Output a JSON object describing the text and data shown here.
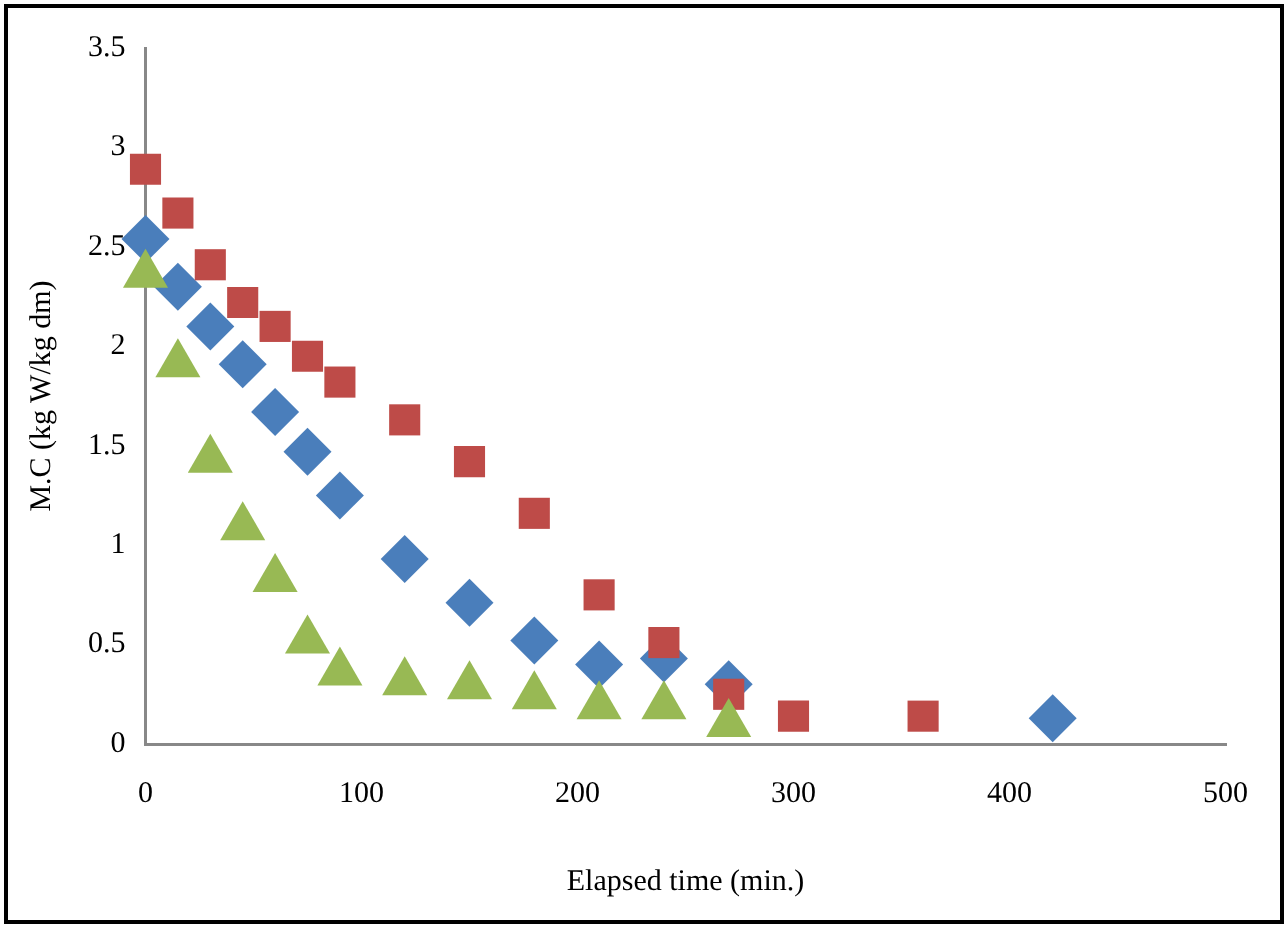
{
  "chart_data": {
    "type": "scatter",
    "xlabel": "Elapsed time (min.)",
    "ylabel": "M.C (kg W/kg dm)",
    "xlim": [
      0,
      500
    ],
    "xticks": [
      0,
      100,
      200,
      300,
      400,
      500
    ],
    "ylim": [
      0,
      3.5
    ],
    "yticks": [
      0,
      0.5,
      1,
      1.5,
      2,
      2.5,
      3,
      3.5
    ],
    "grid": false,
    "legend": false,
    "series": [
      {
        "color": "#4a7ebb",
        "marker": "diamond",
        "x": [
          0,
          15,
          30,
          45,
          60,
          75,
          90,
          120,
          150,
          180,
          210,
          240,
          270,
          420
        ],
        "values": [
          2.54,
          2.3,
          2.1,
          1.91,
          1.67,
          1.47,
          1.25,
          0.93,
          0.71,
          0.52,
          0.4,
          0.43,
          0.3,
          0.13
        ]
      },
      {
        "color": "#be4b48",
        "marker": "square",
        "x": [
          0,
          15,
          30,
          45,
          60,
          75,
          90,
          120,
          150,
          180,
          210,
          240,
          270,
          300,
          360
        ],
        "values": [
          2.89,
          2.67,
          2.41,
          2.22,
          2.1,
          1.95,
          1.82,
          1.63,
          1.42,
          1.16,
          0.75,
          0.51,
          0.25,
          0.14,
          0.14
        ]
      },
      {
        "color": "#98b954",
        "marker": "triangle",
        "x": [
          0,
          15,
          30,
          45,
          60,
          75,
          90,
          120,
          150,
          180,
          210,
          240,
          270
        ],
        "values": [
          2.36,
          1.91,
          1.43,
          1.09,
          0.83,
          0.52,
          0.36,
          0.31,
          0.29,
          0.24,
          0.19,
          0.19,
          0.1
        ]
      }
    ]
  }
}
